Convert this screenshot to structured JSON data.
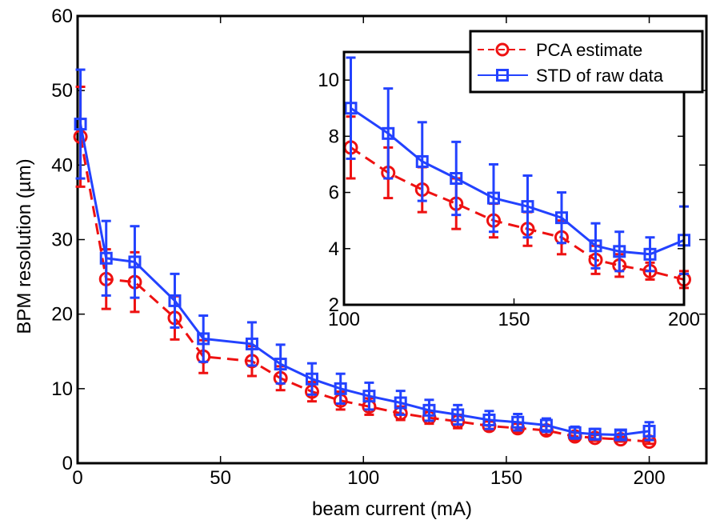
{
  "chart_data": [
    {
      "id": "main",
      "type": "line",
      "xlabel": "beam current (mA)",
      "ylabel": "BPM resolution (µm)",
      "xlim": [
        0,
        220
      ],
      "ylim": [
        0,
        60
      ],
      "xticks": [
        0,
        50,
        100,
        150,
        200
      ],
      "yticks": [
        0,
        10,
        20,
        30,
        40,
        50,
        60
      ],
      "grid": false,
      "series": [
        {
          "name": "STD of raw data",
          "color": "#2342ff",
          "marker": "square",
          "linestyle": "solid",
          "x": [
            1,
            10,
            20,
            34,
            44,
            61,
            71,
            82,
            92,
            102,
            113,
            123,
            133,
            144,
            154,
            164,
            174,
            181,
            190,
            200
          ],
          "y": [
            45.5,
            27.5,
            27.0,
            21.8,
            16.7,
            16.0,
            13.3,
            11.3,
            10.0,
            9.0,
            8.1,
            7.1,
            6.5,
            5.8,
            5.5,
            5.1,
            4.1,
            3.9,
            3.8,
            4.3
          ],
          "err": [
            7.3,
            5.0,
            4.8,
            3.6,
            3.1,
            2.9,
            2.6,
            2.1,
            2.0,
            1.8,
            1.6,
            1.4,
            1.3,
            1.2,
            1.1,
            0.9,
            0.8,
            0.7,
            0.6,
            1.2
          ]
        },
        {
          "name": "PCA estimate",
          "color": "#ee1111",
          "marker": "circle",
          "linestyle": "dashed",
          "x": [
            1,
            10,
            20,
            34,
            44,
            61,
            71,
            82,
            92,
            102,
            113,
            123,
            133,
            144,
            154,
            164,
            174,
            181,
            190,
            200
          ],
          "y": [
            43.8,
            24.7,
            24.3,
            19.5,
            14.3,
            13.7,
            11.4,
            9.6,
            8.4,
            7.6,
            6.7,
            6.1,
            5.6,
            5.0,
            4.7,
            4.4,
            3.6,
            3.4,
            3.2,
            2.9
          ],
          "err": [
            6.7,
            4.0,
            4.0,
            2.9,
            2.2,
            2.0,
            1.6,
            1.3,
            1.2,
            1.1,
            0.9,
            0.8,
            0.9,
            0.6,
            0.6,
            0.6,
            0.5,
            0.4,
            0.3,
            0.3
          ]
        }
      ],
      "legend": {
        "position": "top-right",
        "entries": [
          "PCA estimate",
          "STD of raw data"
        ]
      }
    },
    {
      "id": "inset",
      "type": "line",
      "xlim": [
        100,
        200
      ],
      "ylim": [
        2,
        11
      ],
      "xticks": [
        100,
        150,
        200
      ],
      "yticks": [
        2,
        4,
        6,
        8,
        10
      ],
      "grid": false
    }
  ]
}
